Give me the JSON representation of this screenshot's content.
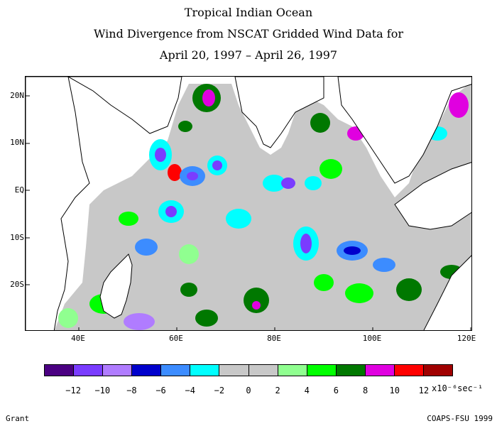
{
  "title": {
    "line1": "Tropical Indian Ocean",
    "line2": "Wind Divergence from NSCAT Gridded Wind Data for",
    "line3": "April 20, 1997 – April 26, 1997"
  },
  "axes": {
    "lat_labels": [
      "20N",
      "10N",
      "EQ",
      "10S",
      "20S"
    ],
    "lon_labels": [
      "40E",
      "60E",
      "80E",
      "100E",
      "120E"
    ]
  },
  "colorbar": {
    "colors": [
      "#4b0082",
      "#7a3cff",
      "#b07cff",
      "#0000cc",
      "#3c8cff",
      "#00ffff",
      "#c8c8c8",
      "#c8c8c8",
      "#90ff90",
      "#00ff00",
      "#007800",
      "#e000e0",
      "#ff0000",
      "#a00000"
    ],
    "tick_labels": [
      "−12",
      "−10",
      "−8",
      "−6",
      "−4",
      "−2",
      "0",
      "2",
      "4",
      "6",
      "8",
      "10",
      "12"
    ],
    "unit": "x10⁻⁶sec⁻¹"
  },
  "colors": {
    "land": "#ffffff",
    "ocean_background": "#c8c8c8",
    "coast": "#000000"
  },
  "footer": {
    "left": "Grant",
    "right": "COAPS-FSU 1999"
  }
}
